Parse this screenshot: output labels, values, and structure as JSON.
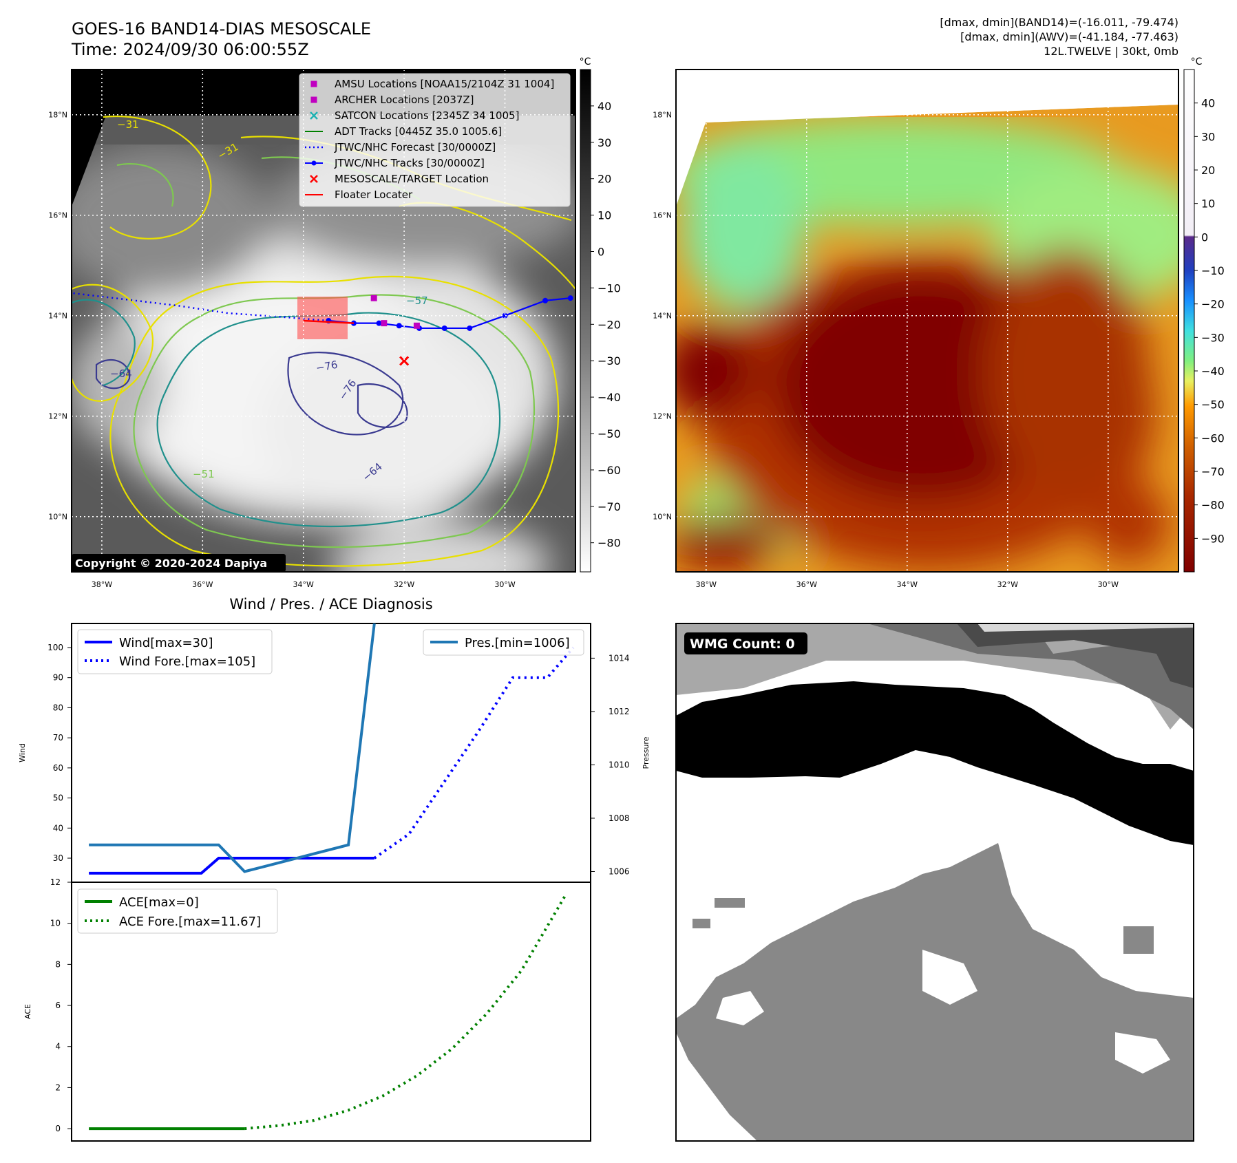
{
  "header": {
    "title": "GOES-16 BAND14-DIAS MESOSCALE",
    "time": "Time: 2024/09/30 06:00:55Z",
    "stat_line1": "[dmax, dmin](BAND14)=(-16.011, -79.474)",
    "stat_line2": "[dmax, dmin](AWV)=(-41.184, -77.463)",
    "stat_line3": "12L.TWELVE | 30kt, 0mb"
  },
  "copyright": "Copyright © 2020-2024 Dapiya",
  "map": {
    "lon_labels": [
      "38°W",
      "36°W",
      "34°W",
      "32°W",
      "30°W"
    ],
    "lon_values": [
      -38,
      -36,
      -34,
      -32,
      -30
    ],
    "lat_labels": [
      "18°N",
      "16°N",
      "14°N",
      "12°N",
      "10°N"
    ],
    "lat_values": [
      18,
      16,
      14,
      12,
      10
    ],
    "lon_range": [
      -38.6,
      -28.6
    ],
    "lat_range": [
      8.9,
      18.9
    ]
  },
  "legend": {
    "items": [
      {
        "label": "AMSU Locations [NOAA15/2104Z 31 1004]",
        "marker": "square",
        "color": "#c000c0"
      },
      {
        "label": "ARCHER Locations [2037Z]",
        "marker": "square",
        "color": "#c000c0"
      },
      {
        "label": "SATCON Locations [2345Z 34 1005]",
        "marker": "x",
        "color": "#20b2b2"
      },
      {
        "label": "ADT Tracks [0445Z 35.0 1005.6]",
        "marker": "line",
        "color": "#008000"
      },
      {
        "label": "JTWC/NHC Forecast [30/0000Z]",
        "marker": "dotted",
        "color": "#0000ff"
      },
      {
        "label": "JTWC/NHC Tracks [30/0000Z]",
        "marker": "line-dot",
        "color": "#0000ff"
      },
      {
        "label": "MESOSCALE/TARGET Location",
        "marker": "x",
        "color": "#ff0000"
      },
      {
        "label": "Floater Locater",
        "marker": "line",
        "color": "#ff0000"
      }
    ]
  },
  "colorbar_gray": {
    "unit": "°C",
    "range": [
      -88,
      50
    ],
    "ticks": [
      "40",
      "30",
      "20",
      "10",
      "0",
      "−10",
      "−20",
      "−30",
      "−40",
      "−50",
      "−60",
      "−70",
      "−80"
    ],
    "tick_values": [
      40,
      30,
      20,
      10,
      0,
      -10,
      -20,
      -30,
      -40,
      -50,
      -60,
      -70,
      -80
    ]
  },
  "colorbar_color": {
    "unit": "°C",
    "range": [
      -100,
      50
    ],
    "ticks": [
      "40",
      "30",
      "20",
      "10",
      "0",
      "−10",
      "−20",
      "−30",
      "−40",
      "−50",
      "−60",
      "−70",
      "−80",
      "−90"
    ],
    "tick_values": [
      40,
      30,
      20,
      10,
      0,
      -10,
      -20,
      -30,
      -40,
      -50,
      -60,
      -70,
      -80,
      -90
    ]
  },
  "contour_labels": [
    "−76",
    "−76",
    "−64",
    "−64",
    "−57",
    "−51",
    "−31",
    "−31"
  ],
  "track": {
    "jtwc_track_lonlat": [
      [
        -28.7,
        14.35
      ],
      [
        -29.2,
        14.3
      ],
      [
        -30.0,
        14.0
      ],
      [
        -30.7,
        13.75
      ],
      [
        -31.2,
        13.75
      ],
      [
        -31.7,
        13.75
      ],
      [
        -32.1,
        13.8
      ],
      [
        -32.5,
        13.85
      ],
      [
        -33.0,
        13.85
      ],
      [
        -33.5,
        13.9
      ]
    ],
    "jtwc_forecast_lonlat": [
      [
        -33.5,
        13.9
      ],
      [
        -34.5,
        13.98
      ],
      [
        -35.5,
        14.05
      ],
      [
        -36.5,
        14.2
      ],
      [
        -37.5,
        14.32
      ],
      [
        -38.6,
        14.45
      ]
    ],
    "amsu_lonlat": [
      [
        -32.6,
        14.35
      ],
      [
        -32.4,
        13.85
      ],
      [
        -31.75,
        13.8
      ]
    ],
    "target_lonlat": [
      -32.0,
      13.1
    ],
    "floater_lonlat": [
      [
        -34.0,
        13.9
      ],
      [
        -33.0,
        13.85
      ]
    ],
    "floater_box_lonlat": [
      -34.1,
      13.45,
      -33.1,
      14.3
    ]
  },
  "wmg_count": "WMG Count: 0",
  "diagnosis_title": "Wind / Pres. / ACE Diagnosis",
  "chart_data": [
    {
      "type": "line",
      "title": "Wind / Pres. / ACE Diagnosis",
      "ylabel": "Wind",
      "ylabel_right": "Pressure",
      "ylim": [
        22,
        108
      ],
      "ylim_right": [
        1005.6,
        1015.3
      ],
      "yticks": [
        30,
        40,
        50,
        60,
        70,
        80,
        90,
        100
      ],
      "yticks_right": [
        1006,
        1008,
        1010,
        1012,
        1014
      ],
      "xlim": [
        0,
        30
      ],
      "series": [
        {
          "name": "Wind[max=30]",
          "style": "solid",
          "color": "#0000ff",
          "x": [
            1,
            7.5,
            8.5,
            10,
            16,
            17.5
          ],
          "values": [
            25,
            25,
            30,
            30,
            30,
            30
          ]
        },
        {
          "name": "Wind Fore.[max=105]",
          "style": "dotted",
          "color": "#0000ff",
          "x": [
            17.5,
            19.5,
            21.5,
            23.5,
            25.5,
            27.5,
            29
          ],
          "values": [
            30,
            38,
            55,
            72,
            90,
            90,
            100
          ]
        },
        {
          "name": "Pres.[min=1006]",
          "axis": "right",
          "style": "solid",
          "color": "#1f77b4",
          "x": [
            1,
            7.5,
            8.5,
            10,
            16,
            17.5
          ],
          "values": [
            1007,
            1007,
            1007,
            1006,
            1007,
            1015.3
          ]
        }
      ],
      "legend_left": [
        "Wind[max=30]",
        "Wind Fore.[max=105]"
      ],
      "legend_right": [
        "Pres.[min=1006]"
      ]
    },
    {
      "type": "line",
      "ylabel": "ACE",
      "ylim": [
        -0.6,
        12
      ],
      "yticks": [
        0,
        2,
        4,
        6,
        8,
        10,
        12
      ],
      "xlim": [
        0,
        30
      ],
      "series": [
        {
          "name": "ACE[max=0]",
          "style": "solid",
          "color": "#008000",
          "x": [
            1,
            10
          ],
          "values": [
            0,
            0
          ]
        },
        {
          "name": "ACE Fore.[max=11.67]",
          "style": "dotted",
          "color": "#008000",
          "x": [
            10,
            12,
            14,
            16,
            18,
            20,
            22,
            24,
            26,
            28.5
          ],
          "values": [
            0,
            0.15,
            0.4,
            0.9,
            1.6,
            2.6,
            3.9,
            5.6,
            7.7,
            11.3
          ]
        }
      ],
      "legend": [
        "ACE[max=0]",
        "ACE Fore.[max=11.67]"
      ]
    }
  ]
}
